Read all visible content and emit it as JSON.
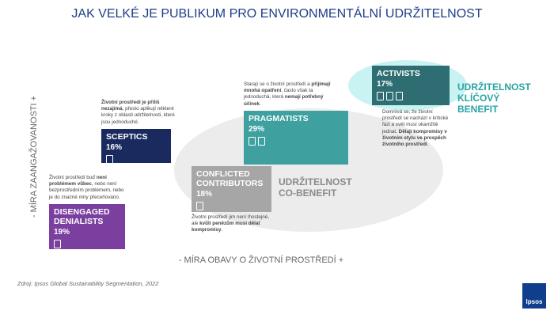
{
  "header": {
    "title": "JAK VELKÉ JE PUBLIKUM PRO ENVIRONMENTÁLNÍ UDRŽITELNOST"
  },
  "axes": {
    "y_label": "- MÍRA ZAANGAŽOVANOSTI +",
    "x_label": "- MÍRA OBAVY O ŽIVOTNÍ PROSTŘEDÍ +"
  },
  "segments": [
    {
      "name": "DISENGAGED DENIALISTS",
      "share": "19%",
      "description": [
        "Životní prostředí buď ",
        "není problémem vůbec",
        ", nebo není bezprostředním problémem, nebo je do značné míry přeceňováno."
      ]
    },
    {
      "name": "SCEPTICS",
      "share": "16%",
      "description": [
        "Životní prostředí je příliš nezajímá",
        ", přesto aplikují některé kroky z oblasti udržitelnosti, které jsou jednoduché."
      ]
    },
    {
      "name": "CONFLICTED CONTRIBUTORS",
      "share": "18%",
      "description": [
        "Životní prostředí jim není lhostejné, ale ",
        "kvůli penězům musí dělat kompromisy",
        "."
      ]
    },
    {
      "name": "PRAGMATISTS",
      "share": "29%",
      "description": [
        "Starají se o životní prostředí a ",
        "přijímají mnohá opatření",
        ", často však ta jednoduchá, která ",
        "nemají potřebný účinek",
        "."
      ]
    },
    {
      "name": "ACTIVISTS",
      "share": "17%",
      "description": [
        "Domnívá se, že životní prostředí se nachází v kritické fázi a svět musí okamžitě jednat. ",
        "Dělají kompromisy v životním stylu ve prospěch životního prostředí",
        "."
      ]
    }
  ],
  "zones": {
    "co_benefit": "UDRŽITELNOST CO-BENEFIT",
    "key_benefit": "UDRŽITELNOST KLÍČOVÝ BENEFIT"
  },
  "footer": {
    "source": "Zdroj: Ipsos Global Sustainability Segmentation, 2022",
    "logo": "Ipsos"
  }
}
